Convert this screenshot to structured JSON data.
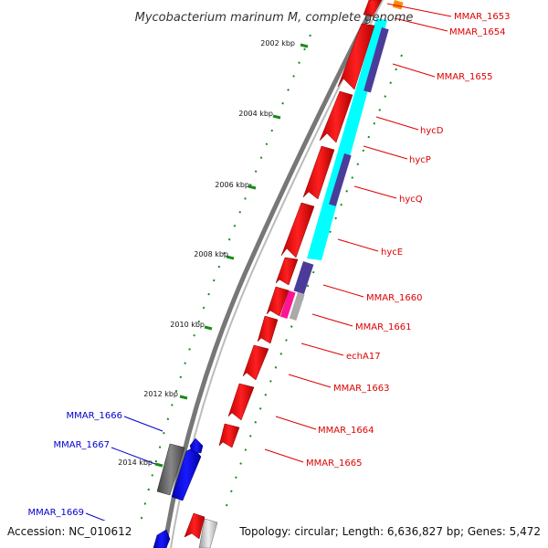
{
  "title": "Mycobacterium marinum M, complete genome",
  "footer": {
    "accession": "Accession: NC_010612",
    "stats": "Topology: circular; Length: 6,636,827 bp; Genes: 5,472"
  },
  "ticks": [
    "2002 kbp",
    "2004 kbp",
    "2006 kbp",
    "2008 kbp",
    "2010 kbp",
    "2012 kbp",
    "2014 kbp"
  ],
  "genes_right": [
    "MMAR_1653",
    "MMAR_1654",
    "MMAR_1655",
    "hycD",
    "hycP",
    "hycQ",
    "hycE",
    "MMAR_1660",
    "MMAR_1661",
    "echA17",
    "MMAR_1663",
    "MMAR_1664",
    "MMAR_1665"
  ],
  "genes_left": [
    "MMAR_1666",
    "MMAR_1667",
    "MMAR_1669"
  ],
  "colors": {
    "forward_gene": "#ff0000",
    "reverse_gene": "#0000ff",
    "cog_cyan": "#00ffff",
    "cog_purple": "#4b3c9a",
    "cog_magenta": "#ff1493",
    "cog_orange": "#ff8c00",
    "cog_gray": "#666666",
    "tick": "#1a8a1a",
    "backbone": "#888888"
  }
}
